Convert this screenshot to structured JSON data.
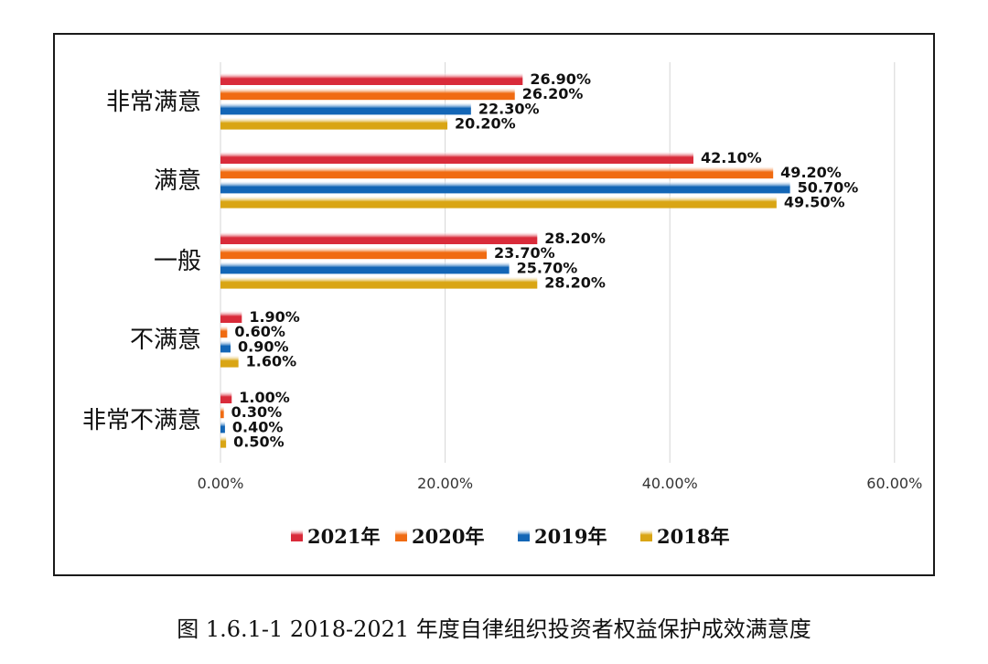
{
  "caption": "图 1.6.1-1 2018-2021 年度自律组织投资者权益保护成效满意度",
  "chart_data": {
    "type": "bar",
    "orientation": "horizontal",
    "categories": [
      "非常满意",
      "满意",
      "一般",
      "不满意",
      "非常不满意"
    ],
    "series": [
      {
        "name": "2021年",
        "color": "#d92b3a",
        "values": [
          26.9,
          42.1,
          28.2,
          1.9,
          1.0
        ],
        "labels": [
          "26.90%",
          "42.10%",
          "28.20%",
          "1.90%",
          "1.00%"
        ]
      },
      {
        "name": "2020年",
        "color": "#f06b12",
        "values": [
          26.2,
          49.2,
          23.7,
          0.6,
          0.3
        ],
        "labels": [
          "26.20%",
          "49.20%",
          "23.70%",
          "0.60%",
          "0.30%"
        ]
      },
      {
        "name": "2019年",
        "color": "#1366b6",
        "values": [
          22.3,
          50.7,
          25.7,
          0.9,
          0.4
        ],
        "labels": [
          "22.30%",
          "50.70%",
          "25.70%",
          "0.90%",
          "0.40%"
        ]
      },
      {
        "name": "2018年",
        "color": "#d9a514",
        "values": [
          20.2,
          49.5,
          28.2,
          1.6,
          0.5
        ],
        "labels": [
          "20.20%",
          "49.50%",
          "28.20%",
          "1.60%",
          "0.50%"
        ]
      }
    ],
    "x_ticks": [
      "0.00%",
      "20.00%",
      "40.00%",
      "60.00%"
    ],
    "xlim": [
      0,
      60
    ],
    "grid": true,
    "legend": "bottom"
  }
}
